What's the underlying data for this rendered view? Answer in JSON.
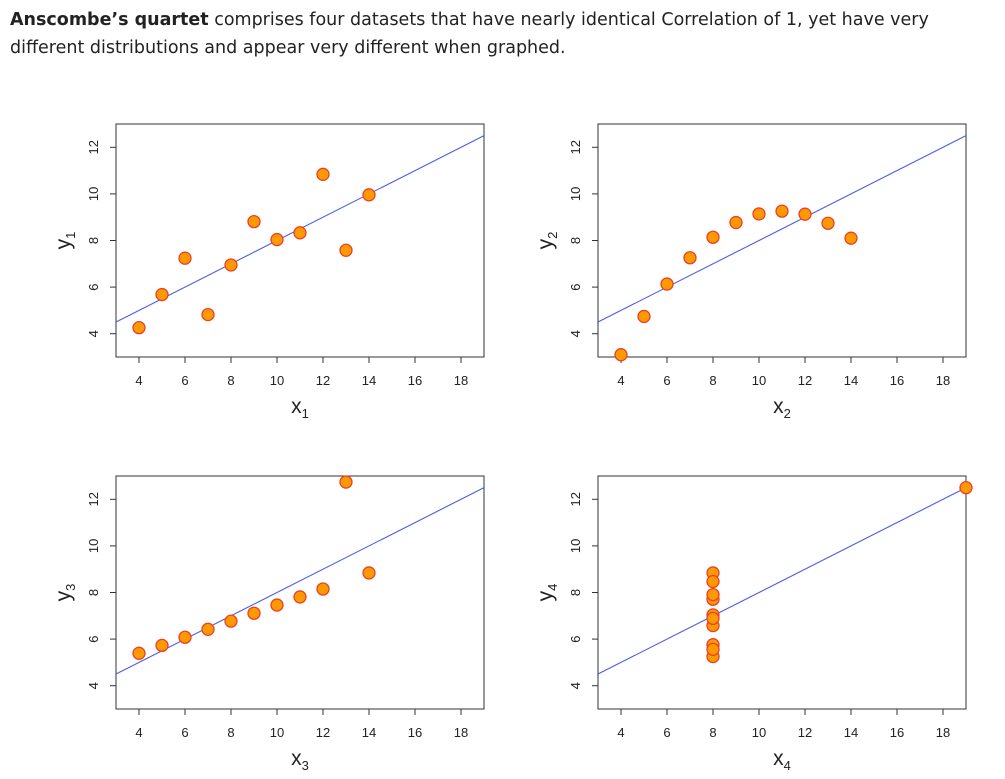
{
  "intro": {
    "bold": "Anscombe’s quartet",
    "rest": " comprises four datasets that have nearly identical Correlation of 1, yet have very different distributions and appear very different when graphed."
  },
  "colors": {
    "point_fill": "#ff9900",
    "point_stroke": "#e8402a",
    "line": "#4b5ee8",
    "frame": "#333333"
  },
  "chart_data": [
    {
      "type": "scatter",
      "xlabel": "x1",
      "ylabel": "y1",
      "x_ticks": [
        "4",
        "6",
        "8",
        "10",
        "12",
        "14",
        "16",
        "18"
      ],
      "y_ticks": [
        "4",
        "6",
        "8",
        "10",
        "12"
      ],
      "xlim": [
        3,
        19
      ],
      "ylim": [
        3,
        13
      ],
      "fit": {
        "intercept": 3.0,
        "slope": 0.5
      },
      "points": [
        [
          10,
          8.04
        ],
        [
          8,
          6.95
        ],
        [
          13,
          7.58
        ],
        [
          9,
          8.81
        ],
        [
          11,
          8.33
        ],
        [
          14,
          9.96
        ],
        [
          6,
          7.24
        ],
        [
          4,
          4.26
        ],
        [
          12,
          10.84
        ],
        [
          7,
          4.82
        ],
        [
          5,
          5.68
        ]
      ]
    },
    {
      "type": "scatter",
      "xlabel": "x2",
      "ylabel": "y2",
      "x_ticks": [
        "4",
        "6",
        "8",
        "10",
        "12",
        "14",
        "16",
        "18"
      ],
      "y_ticks": [
        "4",
        "6",
        "8",
        "10",
        "12"
      ],
      "xlim": [
        3,
        19
      ],
      "ylim": [
        3,
        13
      ],
      "fit": {
        "intercept": 3.0,
        "slope": 0.5
      },
      "points": [
        [
          10,
          9.14
        ],
        [
          8,
          8.14
        ],
        [
          13,
          8.74
        ],
        [
          9,
          8.77
        ],
        [
          11,
          9.26
        ],
        [
          14,
          8.1
        ],
        [
          6,
          6.13
        ],
        [
          4,
          3.1
        ],
        [
          12,
          9.13
        ],
        [
          7,
          7.26
        ],
        [
          5,
          4.74
        ]
      ]
    },
    {
      "type": "scatter",
      "xlabel": "x3",
      "ylabel": "y3",
      "x_ticks": [
        "4",
        "6",
        "8",
        "10",
        "12",
        "14",
        "16",
        "18"
      ],
      "y_ticks": [
        "4",
        "6",
        "8",
        "10",
        "12"
      ],
      "xlim": [
        3,
        19
      ],
      "ylim": [
        3,
        13
      ],
      "fit": {
        "intercept": 3.0,
        "slope": 0.5
      },
      "points": [
        [
          10,
          7.46
        ],
        [
          8,
          6.77
        ],
        [
          13,
          12.74
        ],
        [
          9,
          7.11
        ],
        [
          11,
          7.81
        ],
        [
          14,
          8.84
        ],
        [
          6,
          6.08
        ],
        [
          4,
          5.39
        ],
        [
          12,
          8.15
        ],
        [
          7,
          6.42
        ],
        [
          5,
          5.73
        ]
      ]
    },
    {
      "type": "scatter",
      "xlabel": "x4",
      "ylabel": "y4",
      "x_ticks": [
        "4",
        "6",
        "8",
        "10",
        "12",
        "14",
        "16",
        "18"
      ],
      "y_ticks": [
        "4",
        "6",
        "8",
        "10",
        "12"
      ],
      "xlim": [
        3,
        19
      ],
      "ylim": [
        3,
        13
      ],
      "fit": {
        "intercept": 3.0,
        "slope": 0.5
      },
      "points": [
        [
          8,
          6.58
        ],
        [
          8,
          5.76
        ],
        [
          8,
          7.71
        ],
        [
          8,
          8.84
        ],
        [
          8,
          8.47
        ],
        [
          8,
          7.04
        ],
        [
          8,
          5.25
        ],
        [
          19,
          12.5
        ],
        [
          8,
          5.56
        ],
        [
          8,
          7.91
        ],
        [
          8,
          6.89
        ]
      ]
    }
  ]
}
